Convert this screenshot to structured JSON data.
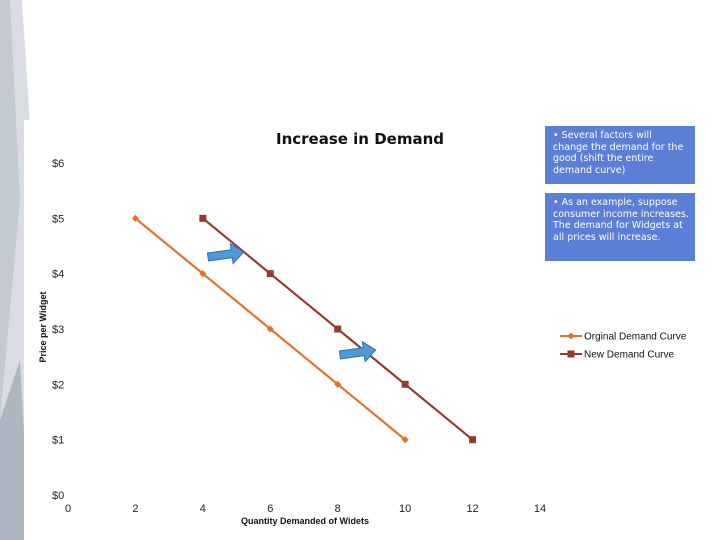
{
  "notes": [
    "• Several factors will change the demand for the good (shift the entire demand curve)",
    "• As an example, suppose consumer income increases. The demand for Widgets at all prices will increase."
  ],
  "colors": {
    "original": "#e0732a",
    "new": "#963a2f",
    "note_bg": "#5b7fd6",
    "arrow": "#4f9ad6"
  },
  "chart_data": {
    "type": "line",
    "title": "Increase in Demand",
    "xlabel": "Quantity Demanded of Widets",
    "ylabel": "Price per Widget",
    "xlim": [
      0,
      14
    ],
    "ylim": [
      0,
      6
    ],
    "x_ticks": [
      "0",
      "2",
      "4",
      "6",
      "8",
      "10",
      "12",
      "14"
    ],
    "y_ticks": [
      "$0",
      "$1",
      "$2",
      "$3",
      "$4",
      "$5",
      "$6"
    ],
    "legend_position": "right",
    "series": [
      {
        "name": "Orginal Demand Curve",
        "x": [
          2,
          4,
          6,
          8,
          10
        ],
        "y": [
          5,
          4,
          3,
          2,
          1
        ]
      },
      {
        "name": "New Demand Curve",
        "x": [
          4,
          6,
          8,
          10,
          12
        ],
        "y": [
          5,
          4,
          3,
          2,
          1
        ]
      }
    ]
  }
}
